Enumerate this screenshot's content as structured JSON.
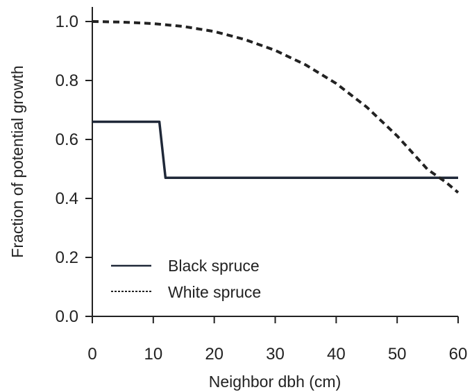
{
  "chart_data": {
    "type": "line",
    "xlabel": "Neighbor dbh (cm)",
    "ylabel": "Fraction of potential growth",
    "xlim": [
      0,
      60
    ],
    "ylim": [
      0,
      1.0
    ],
    "xticks": [
      0,
      10,
      20,
      30,
      40,
      50,
      60
    ],
    "yticks": [
      0.0,
      0.2,
      0.4,
      0.6,
      0.8,
      1.0
    ],
    "xtick_labels": [
      "0",
      "10",
      "20",
      "30",
      "40",
      "50",
      "60"
    ],
    "ytick_labels": [
      "0.0",
      "0.2",
      "0.4",
      "0.6",
      "0.8",
      "1.0"
    ],
    "grid": false,
    "legend_position": "bottom-left",
    "series": [
      {
        "name": "Black spruce",
        "style": "solid",
        "color": "#1f2838",
        "x": [
          0,
          11,
          12,
          60
        ],
        "y": [
          0.66,
          0.66,
          0.47,
          0.47
        ]
      },
      {
        "name": "White spruce",
        "style": "dashed",
        "color": "#222222",
        "x": [
          0,
          5,
          10,
          15,
          20,
          25,
          30,
          35,
          40,
          45,
          50,
          55,
          58,
          60
        ],
        "y": [
          1.0,
          0.998,
          0.993,
          0.983,
          0.966,
          0.939,
          0.902,
          0.853,
          0.79,
          0.71,
          0.612,
          0.498,
          0.455,
          0.42
        ]
      }
    ]
  }
}
